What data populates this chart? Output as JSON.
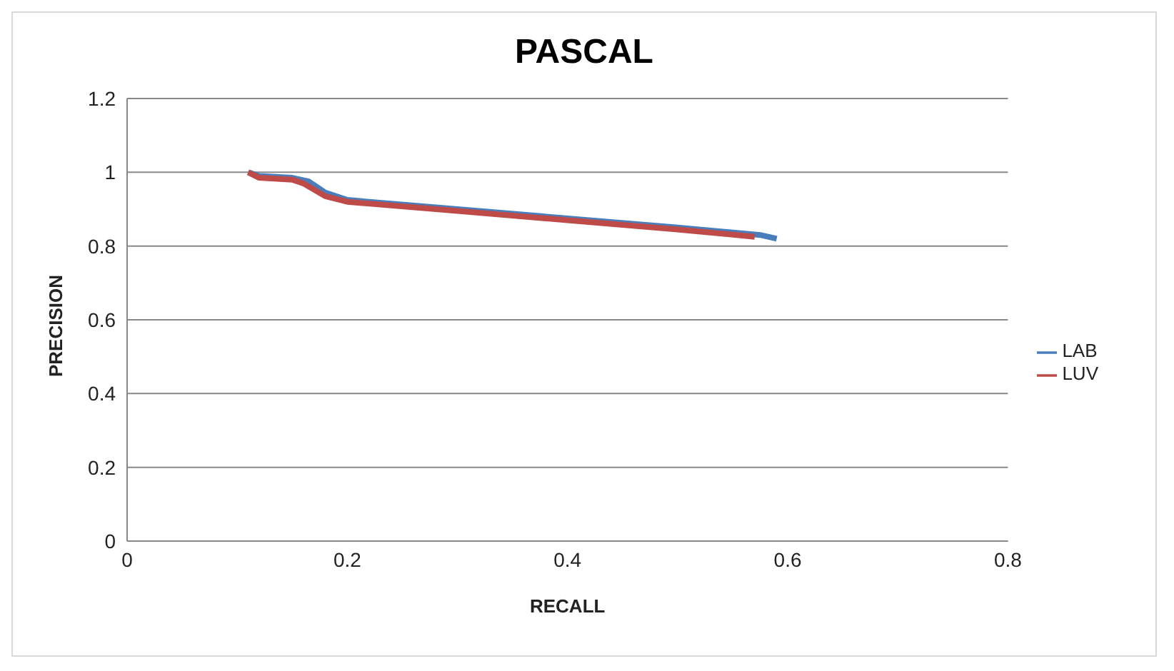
{
  "chart_data": {
    "type": "line",
    "title": "PASCAL",
    "xlabel": "RECALL",
    "ylabel": "PRECISION",
    "series": [
      {
        "name": "LAB",
        "color": "#4a7ebb",
        "x": [
          0.11,
          0.12,
          0.15,
          0.165,
          0.18,
          0.2,
          0.3,
          0.4,
          0.5,
          0.575,
          0.59
        ],
        "values": [
          1.0,
          0.99,
          0.985,
          0.975,
          0.945,
          0.925,
          0.9,
          0.875,
          0.85,
          0.83,
          0.82
        ]
      },
      {
        "name": "LUV",
        "color": "#be4b48",
        "x": [
          0.11,
          0.12,
          0.15,
          0.16,
          0.18,
          0.2,
          0.3,
          0.4,
          0.5,
          0.57
        ],
        "values": [
          1.0,
          0.985,
          0.98,
          0.97,
          0.935,
          0.92,
          0.895,
          0.87,
          0.845,
          0.825
        ]
      }
    ],
    "xlim": [
      0,
      0.8
    ],
    "xticks": [
      0,
      0.2,
      0.4,
      0.6,
      0.8
    ],
    "ylim": [
      0,
      1.2
    ],
    "yticks": [
      0,
      0.2,
      0.4,
      0.6,
      0.8,
      1,
      1.2
    ],
    "grid": "y",
    "legend": "right",
    "marker": "none",
    "line_style": "solid"
  }
}
